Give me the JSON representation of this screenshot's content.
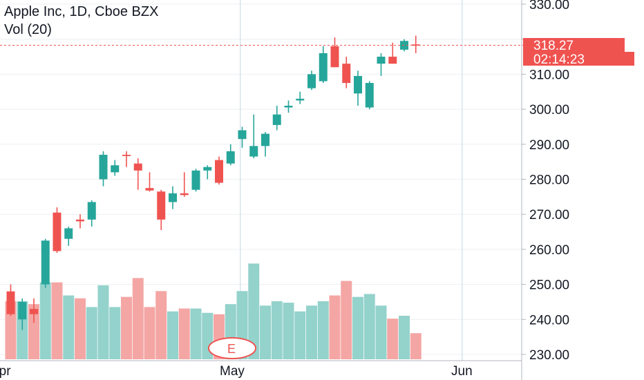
{
  "legend": {
    "title": "Apple Inc, 1D, Cboe BZX",
    "volume_label": "Vol (20)"
  },
  "earnings_marker": "E",
  "price_tags": {
    "last_price": "318.27",
    "countdown": "02:14:23"
  },
  "colors": {
    "up": "#26a69a",
    "down": "#ef5350",
    "vol_up": "#94d2cc",
    "vol_down": "#f4a6a4",
    "grid": "#eceff2",
    "axis_line": "#b2b5be",
    "v_marker_line": "#d6e4ef"
  },
  "chart_data": {
    "type": "candlestick",
    "title": "Apple Inc, 1D, Cboe BZX",
    "price_axis": {
      "min": 228,
      "max": 330,
      "ticks": [
        230,
        240,
        250,
        260,
        270,
        280,
        290,
        300,
        310,
        320,
        330
      ],
      "tick_labels": [
        "230.00",
        "240.00",
        "250.00",
        "260.00",
        "270.00",
        "280.00",
        "290.00",
        "300.00",
        "310.00",
        "",
        "330.00"
      ]
    },
    "x_axis": {
      "tick_labels": [
        "Apr",
        "May",
        "Jun"
      ],
      "tick_positions": [
        -1,
        19,
        39
      ]
    },
    "last_price_line": 318.27,
    "candles": [
      {
        "o": 248.0,
        "h": 250.0,
        "l": 241.0,
        "c": 241.5
      },
      {
        "o": 240.0,
        "h": 246.0,
        "l": 237.0,
        "c": 245.0
      },
      {
        "o": 243.0,
        "h": 246.0,
        "l": 239.0,
        "c": 241.5
      },
      {
        "o": 250.0,
        "h": 263.0,
        "l": 249.0,
        "c": 262.5
      },
      {
        "o": 270.5,
        "h": 272.0,
        "l": 259.0,
        "c": 259.5
      },
      {
        "o": 263.0,
        "h": 266.5,
        "l": 261.0,
        "c": 266.0
      },
      {
        "o": 268.5,
        "h": 270.0,
        "l": 266.0,
        "c": 268.0
      },
      {
        "o": 268.5,
        "h": 274.0,
        "l": 266.5,
        "c": 273.5
      },
      {
        "o": 280.0,
        "h": 288.0,
        "l": 278.0,
        "c": 287.0
      },
      {
        "o": 282.0,
        "h": 285.5,
        "l": 281.0,
        "c": 284.0
      },
      {
        "o": 287.0,
        "h": 288.0,
        "l": 283.5,
        "c": 286.8
      },
      {
        "o": 284.5,
        "h": 286.0,
        "l": 277.0,
        "c": 282.5
      },
      {
        "o": 277.5,
        "h": 282.0,
        "l": 276.5,
        "c": 276.8
      },
      {
        "o": 276.5,
        "h": 277.0,
        "l": 265.5,
        "c": 268.5
      },
      {
        "o": 273.5,
        "h": 278.0,
        "l": 271.5,
        "c": 276.0
      },
      {
        "o": 276.0,
        "h": 282.0,
        "l": 275.0,
        "c": 275.5
      },
      {
        "o": 277.0,
        "h": 283.0,
        "l": 276.5,
        "c": 282.5
      },
      {
        "o": 282.5,
        "h": 284.0,
        "l": 280.0,
        "c": 283.5
      },
      {
        "o": 285.5,
        "h": 286.5,
        "l": 278.5,
        "c": 279.0
      },
      {
        "o": 284.5,
        "h": 290.0,
        "l": 284.0,
        "c": 288.0
      },
      {
        "o": 291.5,
        "h": 295.0,
        "l": 289.0,
        "c": 294.0
      },
      {
        "o": 286.5,
        "h": 298.5,
        "l": 286.0,
        "c": 289.5
      },
      {
        "o": 289.5,
        "h": 293.5,
        "l": 286.5,
        "c": 293.0
      },
      {
        "o": 295.5,
        "h": 301.0,
        "l": 294.0,
        "c": 298.5
      },
      {
        "o": 300.5,
        "h": 302.5,
        "l": 299.0,
        "c": 301.0
      },
      {
        "o": 302.5,
        "h": 305.0,
        "l": 301.5,
        "c": 303.0
      },
      {
        "o": 306.0,
        "h": 311.0,
        "l": 305.5,
        "c": 310.0
      },
      {
        "o": 308.0,
        "h": 318.0,
        "l": 307.5,
        "c": 316.0
      },
      {
        "o": 318.0,
        "h": 320.5,
        "l": 312.0,
        "c": 312.0
      },
      {
        "o": 313.0,
        "h": 315.0,
        "l": 306.0,
        "c": 307.5
      },
      {
        "o": 304.5,
        "h": 311.0,
        "l": 301.0,
        "c": 309.5
      },
      {
        "o": 300.5,
        "h": 308.0,
        "l": 300.0,
        "c": 307.5
      },
      {
        "o": 313.0,
        "h": 316.0,
        "l": 309.5,
        "c": 315.0
      },
      {
        "o": 315.0,
        "h": 319.0,
        "l": 313.0,
        "c": 313.0
      },
      {
        "o": 317.0,
        "h": 320.0,
        "l": 316.5,
        "c": 319.5
      },
      {
        "o": 318.5,
        "h": 321.0,
        "l": 316.0,
        "c": 318.3
      }
    ],
    "volume": [
      {
        "v": 0.4,
        "up": false
      },
      {
        "v": 0.4,
        "up": true
      },
      {
        "v": 0.38,
        "up": false
      },
      {
        "v": 0.53,
        "up": true
      },
      {
        "v": 0.53,
        "up": false
      },
      {
        "v": 0.44,
        "up": true
      },
      {
        "v": 0.42,
        "up": false
      },
      {
        "v": 0.36,
        "up": true
      },
      {
        "v": 0.51,
        "up": true
      },
      {
        "v": 0.36,
        "up": true
      },
      {
        "v": 0.43,
        "up": false
      },
      {
        "v": 0.56,
        "up": false
      },
      {
        "v": 0.36,
        "up": false
      },
      {
        "v": 0.47,
        "up": false
      },
      {
        "v": 0.33,
        "up": true
      },
      {
        "v": 0.35,
        "up": false
      },
      {
        "v": 0.35,
        "up": true
      },
      {
        "v": 0.32,
        "up": true
      },
      {
        "v": 0.31,
        "up": false
      },
      {
        "v": 0.38,
        "up": true
      },
      {
        "v": 0.47,
        "up": true
      },
      {
        "v": 0.66,
        "up": true
      },
      {
        "v": 0.37,
        "up": true
      },
      {
        "v": 0.4,
        "up": true
      },
      {
        "v": 0.39,
        "up": true
      },
      {
        "v": 0.33,
        "up": true
      },
      {
        "v": 0.37,
        "up": true
      },
      {
        "v": 0.4,
        "up": true
      },
      {
        "v": 0.44,
        "up": false
      },
      {
        "v": 0.54,
        "up": false
      },
      {
        "v": 0.43,
        "up": true
      },
      {
        "v": 0.45,
        "up": true
      },
      {
        "v": 0.37,
        "up": true
      },
      {
        "v": 0.28,
        "up": false
      },
      {
        "v": 0.3,
        "up": true
      },
      {
        "v": 0.18,
        "up": false
      }
    ]
  }
}
